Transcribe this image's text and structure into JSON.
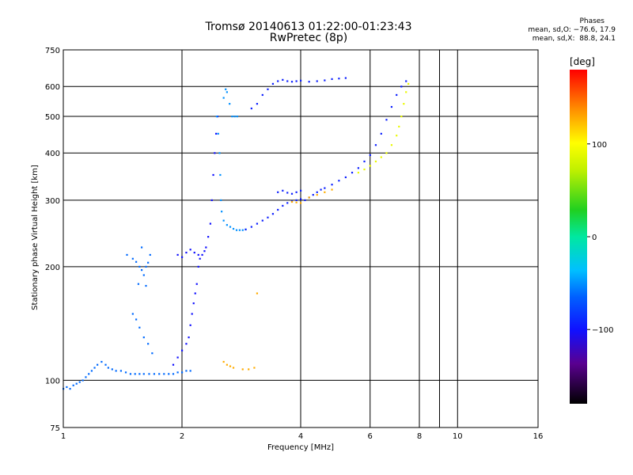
{
  "header": {
    "title": "Tromsø 20140613 01:22:00-01:23:43",
    "subtitle": "RwPretec (8p)",
    "stats_title": "Phases",
    "stats_o": "mean, sd,O: −76.6, 17.9",
    "stats_x": "mean, sd,X:  88.8, 24.1"
  },
  "chart_data": {
    "type": "scatter",
    "title": "Tromsø 20140613 01:22:00-01:23:43",
    "subtitle": "RwPretec (8p)",
    "xlabel": "Frequency [MHz]",
    "ylabel": "Stationary phase Virtual Height [km]",
    "xscale": "log",
    "yscale": "log",
    "xlim": [
      1,
      16
    ],
    "ylim": [
      75,
      750
    ],
    "x_ticks": [
      1,
      2,
      4,
      6,
      8,
      10,
      16
    ],
    "x_tick_labels": [
      "1",
      "2",
      "4",
      "6",
      "8",
      "10",
      "16"
    ],
    "extra_x_gridlines": [
      9
    ],
    "y_ticks": [
      75,
      100,
      200,
      300,
      400,
      500,
      600,
      750
    ],
    "y_tick_labels": [
      "75",
      "100",
      "200",
      "300",
      "400",
      "500",
      "600",
      "750"
    ],
    "grid": true,
    "colorbar": {
      "label": "[deg]",
      "range": [
        -180,
        180
      ],
      "ticks": [
        100,
        0,
        -100
      ],
      "tick_labels": [
        "100",
        "0",
        "−100"
      ]
    },
    "series": [
      {
        "values_phase": -72,
        "points": [
          [
            1.0,
            95
          ],
          [
            1.02,
            96
          ],
          [
            1.04,
            95
          ],
          [
            1.06,
            97
          ],
          [
            1.08,
            98
          ],
          [
            1.1,
            99
          ],
          [
            1.12,
            100
          ],
          [
            1.14,
            102
          ],
          [
            1.16,
            104
          ],
          [
            1.18,
            106
          ],
          [
            1.2,
            108
          ],
          [
            1.22,
            110
          ],
          [
            1.25,
            112
          ],
          [
            1.28,
            110
          ],
          [
            1.3,
            108
          ],
          [
            1.33,
            107
          ],
          [
            1.36,
            106
          ],
          [
            1.4,
            106
          ],
          [
            1.44,
            105
          ],
          [
            1.48,
            104
          ],
          [
            1.52,
            104
          ],
          [
            1.56,
            104
          ],
          [
            1.6,
            104
          ],
          [
            1.65,
            104
          ],
          [
            1.7,
            104
          ],
          [
            1.75,
            104
          ],
          [
            1.8,
            104
          ],
          [
            1.85,
            104
          ],
          [
            1.9,
            104
          ],
          [
            1.95,
            105
          ],
          [
            2.0,
            105
          ],
          [
            2.05,
            106
          ],
          [
            2.1,
            106
          ]
        ]
      },
      {
        "values_phase": -72,
        "points": [
          [
            1.45,
            215
          ],
          [
            1.5,
            210
          ],
          [
            1.53,
            206
          ],
          [
            1.56,
            200
          ],
          [
            1.58,
            196
          ],
          [
            1.6,
            190
          ],
          [
            1.62,
            200
          ],
          [
            1.64,
            205
          ],
          [
            1.66,
            215
          ],
          [
            1.58,
            225
          ],
          [
            1.55,
            180
          ],
          [
            1.62,
            178
          ],
          [
            1.5,
            150
          ],
          [
            1.53,
            145
          ],
          [
            1.56,
            138
          ],
          [
            1.6,
            130
          ],
          [
            1.64,
            125
          ],
          [
            1.68,
            118
          ]
        ]
      },
      {
        "values_phase": -100,
        "points": [
          [
            1.9,
            110
          ],
          [
            1.95,
            115
          ],
          [
            2.0,
            120
          ],
          [
            2.05,
            125
          ],
          [
            2.08,
            130
          ],
          [
            2.1,
            140
          ],
          [
            2.12,
            150
          ],
          [
            2.14,
            160
          ],
          [
            2.16,
            170
          ],
          [
            2.18,
            180
          ],
          [
            2.2,
            200
          ],
          [
            2.22,
            210
          ],
          [
            2.25,
            215
          ],
          [
            2.28,
            220
          ],
          [
            2.3,
            225
          ],
          [
            2.33,
            240
          ],
          [
            2.36,
            260
          ],
          [
            2.38,
            300
          ],
          [
            2.4,
            350
          ],
          [
            2.42,
            400
          ],
          [
            2.44,
            450
          ],
          [
            2.46,
            500
          ],
          [
            1.95,
            215
          ],
          [
            2.0,
            212
          ],
          [
            2.05,
            218
          ],
          [
            2.1,
            222
          ],
          [
            2.15,
            218
          ],
          [
            2.2,
            215
          ]
        ]
      },
      {
        "values_phase": -60,
        "points": [
          [
            2.45,
            500
          ],
          [
            2.47,
            450
          ],
          [
            2.49,
            400
          ],
          [
            2.5,
            350
          ],
          [
            2.51,
            300
          ],
          [
            2.52,
            280
          ],
          [
            2.55,
            265
          ],
          [
            2.6,
            258
          ],
          [
            2.65,
            255
          ],
          [
            2.7,
            252
          ],
          [
            2.75,
            250
          ],
          [
            2.8,
            250
          ],
          [
            2.85,
            250
          ],
          [
            2.9,
            251
          ],
          [
            2.55,
            560
          ],
          [
            2.58,
            590
          ],
          [
            2.6,
            580
          ],
          [
            2.64,
            540
          ],
          [
            2.68,
            500
          ],
          [
            2.72,
            500
          ],
          [
            2.76,
            500
          ]
        ]
      },
      {
        "values_phase": -95,
        "points": [
          [
            2.9,
            251
          ],
          [
            3.0,
            255
          ],
          [
            3.1,
            260
          ],
          [
            3.2,
            265
          ],
          [
            3.3,
            270
          ],
          [
            3.4,
            276
          ],
          [
            3.5,
            283
          ],
          [
            3.6,
            290
          ],
          [
            3.7,
            295
          ],
          [
            3.8,
            298
          ],
          [
            3.9,
            300
          ],
          [
            4.0,
            302
          ],
          [
            4.1,
            300
          ],
          [
            4.2,
            305
          ],
          [
            4.3,
            310
          ],
          [
            4.4,
            315
          ],
          [
            4.5,
            320
          ],
          [
            4.6,
            323
          ],
          [
            4.8,
            330
          ],
          [
            5.0,
            338
          ],
          [
            5.2,
            345
          ],
          [
            5.4,
            355
          ],
          [
            5.6,
            365
          ],
          [
            5.8,
            380
          ],
          [
            6.0,
            395
          ],
          [
            6.2,
            420
          ],
          [
            6.4,
            450
          ],
          [
            6.6,
            490
          ],
          [
            6.8,
            530
          ],
          [
            7.0,
            570
          ],
          [
            7.2,
            600
          ],
          [
            7.4,
            620
          ]
        ]
      },
      {
        "values_phase": -95,
        "points": [
          [
            3.0,
            525
          ],
          [
            3.1,
            540
          ],
          [
            3.2,
            570
          ],
          [
            3.3,
            590
          ],
          [
            3.4,
            610
          ],
          [
            3.5,
            620
          ],
          [
            3.6,
            625
          ],
          [
            3.7,
            620
          ],
          [
            3.8,
            618
          ],
          [
            3.9,
            620
          ],
          [
            4.0,
            622
          ],
          [
            4.2,
            618
          ],
          [
            4.4,
            620
          ],
          [
            4.6,
            623
          ],
          [
            4.8,
            628
          ],
          [
            5.0,
            630
          ],
          [
            5.2,
            632
          ],
          [
            3.5,
            315
          ],
          [
            3.6,
            318
          ],
          [
            3.7,
            314
          ],
          [
            3.8,
            312
          ],
          [
            3.9,
            315
          ],
          [
            4.0,
            318
          ]
        ]
      },
      {
        "values_phase": 130,
        "points": [
          [
            3.8,
            297
          ],
          [
            3.9,
            296
          ],
          [
            4.0,
            295
          ],
          [
            4.2,
            305
          ],
          [
            4.4,
            310
          ],
          [
            4.6,
            315
          ],
          [
            4.8,
            320
          ],
          [
            2.55,
            112
          ],
          [
            2.6,
            110
          ],
          [
            2.65,
            109
          ],
          [
            2.7,
            108
          ],
          [
            2.85,
            107
          ],
          [
            2.95,
            107
          ],
          [
            3.05,
            108
          ],
          [
            3.1,
            170
          ]
        ]
      },
      {
        "values_phase": 90,
        "points": [
          [
            5.6,
            355
          ],
          [
            5.8,
            362
          ],
          [
            6.0,
            370
          ],
          [
            6.2,
            380
          ],
          [
            6.4,
            390
          ],
          [
            6.6,
            400
          ],
          [
            6.8,
            420
          ],
          [
            7.0,
            445
          ],
          [
            7.1,
            470
          ],
          [
            7.2,
            500
          ],
          [
            7.3,
            540
          ],
          [
            7.4,
            580
          ],
          [
            7.5,
            610
          ]
        ]
      }
    ]
  }
}
